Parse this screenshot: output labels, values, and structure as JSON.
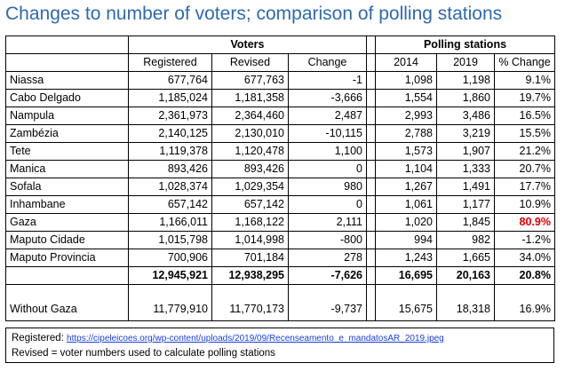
{
  "title": "Changes to number of voters; comparison of polling stations",
  "group_headers": {
    "voters": "Voters",
    "polling": "Polling stations"
  },
  "col_headers": [
    "Registered",
    "Revised",
    "Change",
    "2014",
    "2019",
    "% Change"
  ],
  "rows": [
    {
      "name": "Niassa",
      "reg": "677,764",
      "rev": "677,763",
      "chg": "-1",
      "y2014": "1,098",
      "y2019": "1,198",
      "pct": "9.1%"
    },
    {
      "name": "Cabo Delgado",
      "reg": "1,185,024",
      "rev": "1,181,358",
      "chg": "-3,666",
      "y2014": "1,554",
      "y2019": "1,860",
      "pct": "19.7%"
    },
    {
      "name": "Nampula",
      "reg": "2,361,973",
      "rev": "2,364,460",
      "chg": "2,487",
      "y2014": "2,993",
      "y2019": "3,486",
      "pct": "16.5%"
    },
    {
      "name": "Zambézia",
      "reg": "2,140,125",
      "rev": "2,130,010",
      "chg": "-10,115",
      "y2014": "2,788",
      "y2019": "3,219",
      "pct": "15.5%"
    },
    {
      "name": "Tete",
      "reg": "1,119,378",
      "rev": "1,120,478",
      "chg": "1,100",
      "y2014": "1,573",
      "y2019": "1,907",
      "pct": "21.2%"
    },
    {
      "name": "Manica",
      "reg": "893,426",
      "rev": "893,426",
      "chg": "0",
      "y2014": "1,104",
      "y2019": "1,333",
      "pct": "20.7%"
    },
    {
      "name": "Sofala",
      "reg": "1,028,374",
      "rev": "1,029,354",
      "chg": "980",
      "y2014": "1,267",
      "y2019": "1,491",
      "pct": "17.7%"
    },
    {
      "name": "Inhambane",
      "reg": "657,142",
      "rev": "657,142",
      "chg": "0",
      "y2014": "1,061",
      "y2019": "1,177",
      "pct": "10.9%"
    },
    {
      "name": "Gaza",
      "reg": "1,166,011",
      "rev": "1,168,122",
      "chg": "2,111",
      "y2014": "1,020",
      "y2019": "1,845",
      "pct": "80.9%"
    },
    {
      "name": "Maputo Cidade",
      "reg": "1,015,798",
      "rev": "1,014,998",
      "chg": "-800",
      "y2014": "994",
      "y2019": "982",
      "pct": "-1.2%"
    },
    {
      "name": "Maputo Provincia",
      "reg": "700,906",
      "rev": "701,184",
      "chg": "278",
      "y2014": "1,243",
      "y2019": "1,665",
      "pct": "34.0%"
    }
  ],
  "totals": {
    "reg": "12,945,921",
    "rev": "12,938,295",
    "chg": "-7,626",
    "y2014": "16,695",
    "y2019": "20,163",
    "pct": "20.8%"
  },
  "without_gaza": {
    "name": "Without Gaza",
    "reg": "11,779,910",
    "rev": "11,770,173",
    "chg": "-9,737",
    "y2014": "15,675",
    "y2019": "18,318",
    "pct": "16.9%"
  },
  "highlight_color": "#e00000",
  "footer": {
    "registered_label": "Registered:",
    "registered_link": "https://cipeleicoes.org/wp-content/uploads/2019/09/Recenseamento_e_mandatosAR_2019.jpeg",
    "revised_note": "Revised = voter numbers used to calculate polling stations"
  }
}
